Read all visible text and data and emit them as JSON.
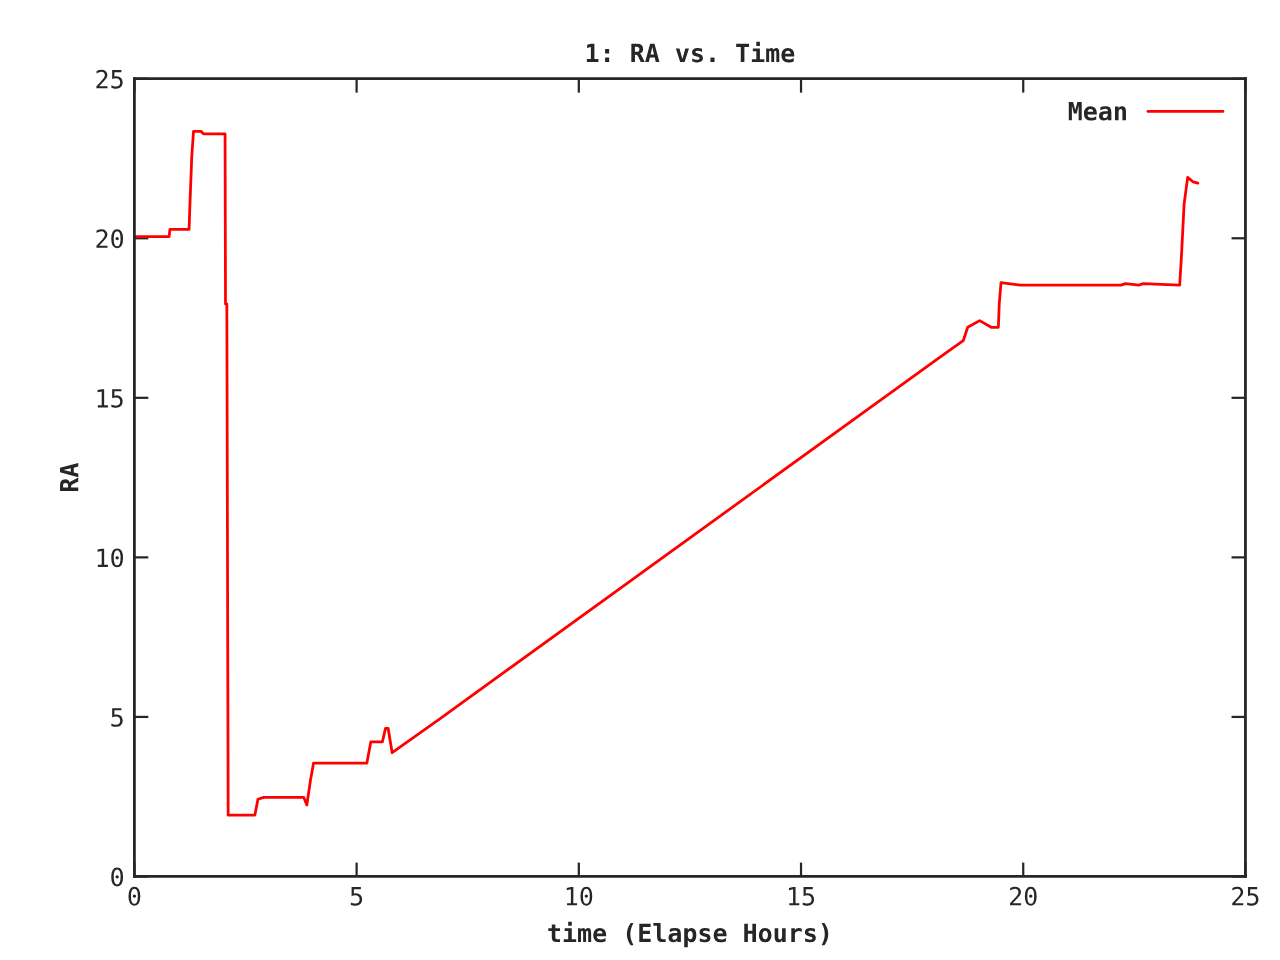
{
  "chart_data": {
    "type": "line",
    "title": "1: RA vs. Time",
    "xlabel": "time (Elapse Hours)",
    "ylabel": "RA",
    "xlim": [
      0,
      25
    ],
    "xticks": [
      0,
      5,
      10,
      15,
      20,
      25
    ],
    "ylim": [
      0,
      25
    ],
    "yticks": [
      0,
      5,
      10,
      15,
      20,
      25
    ],
    "grid": false,
    "legend": "top right",
    "marker": "none",
    "line_style": "solid",
    "series": [
      {
        "name": "Mean",
        "color": "#ff0000",
        "x": [
          0,
          0.78,
          0.8,
          1.23,
          1.25,
          1.29,
          1.33,
          1.5,
          1.56,
          2.04,
          2.05,
          2.08,
          2.1,
          2.11,
          2.71,
          2.78,
          2.91,
          3.81,
          3.88,
          3.96,
          4.03,
          5.23,
          5.32,
          5.58,
          5.65,
          5.71,
          5.8,
          6.88,
          18.12,
          18.65,
          18.75,
          19.02,
          19.28,
          19.44,
          19.46,
          19.5,
          19.95,
          22.2,
          22.3,
          22.6,
          22.7,
          23.52,
          23.56,
          23.62,
          23.7,
          23.82,
          23.93
        ],
        "values": [
          20.05,
          20.05,
          20.28,
          20.28,
          21.07,
          22.54,
          23.35,
          23.35,
          23.27,
          23.27,
          17.94,
          17.94,
          7.29,
          1.92,
          1.92,
          2.42,
          2.48,
          2.48,
          2.24,
          3.0,
          3.55,
          3.55,
          4.22,
          4.22,
          4.64,
          4.64,
          3.88,
          4.95,
          16.27,
          16.79,
          17.21,
          17.42,
          17.21,
          17.21,
          17.94,
          18.61,
          18.53,
          18.53,
          18.58,
          18.53,
          18.58,
          18.53,
          19.44,
          21.07,
          21.91,
          21.77,
          21.73
        ]
      }
    ]
  }
}
